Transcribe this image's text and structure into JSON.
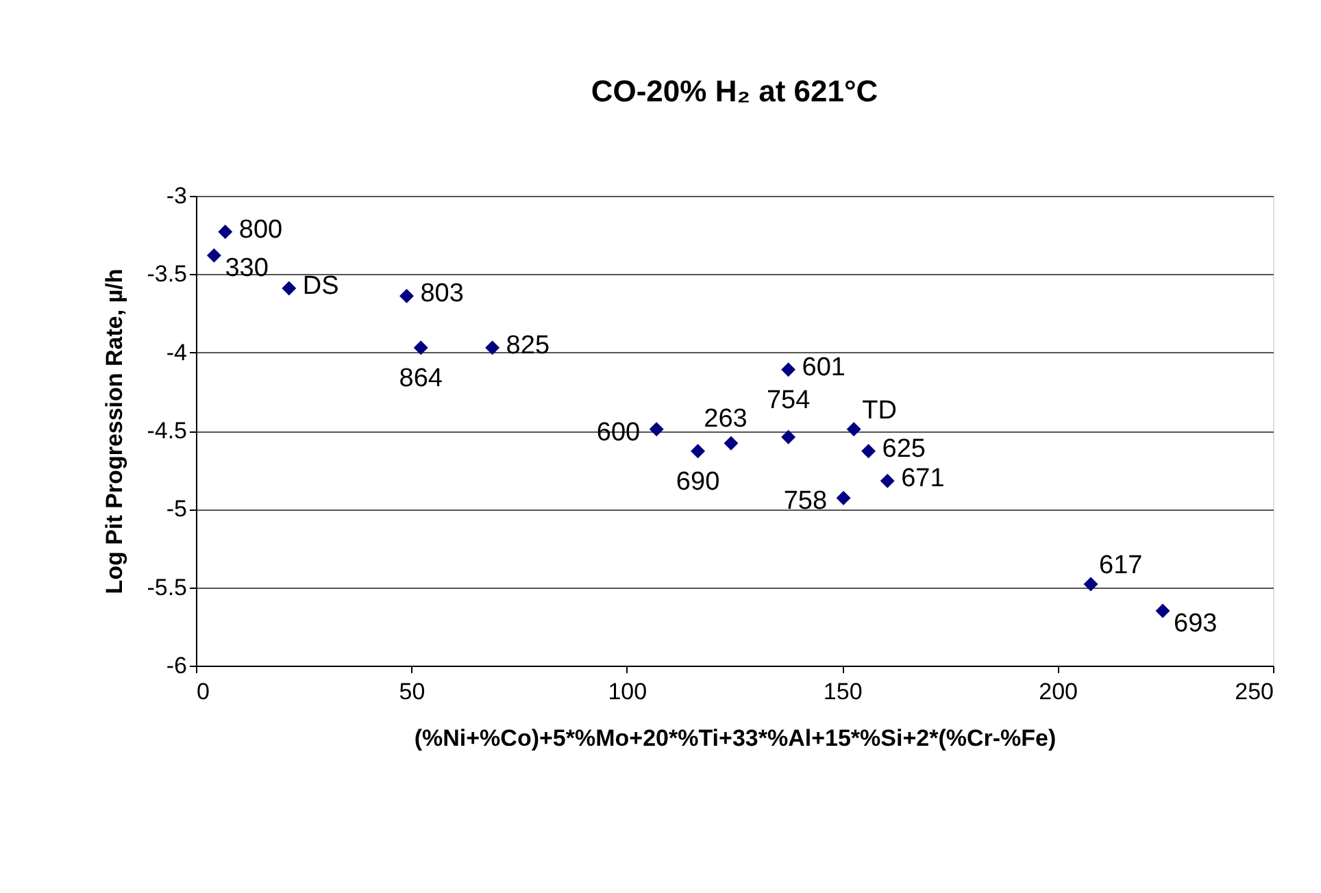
{
  "chart_data": {
    "type": "scatter",
    "title": "CO-20% H₂ at 621°C",
    "xlabel": "(%Ni+%Co)+5*%Mo+20*%Ti+33*%Al+15*%Si+2*(%Cr-%Fe)",
    "ylabel": "Log Pit Progression Rate, µ/h",
    "x": [
      6.8,
      4.2,
      21.6,
      48.9,
      52.2,
      68.8,
      106.9,
      116.5,
      124.2,
      137.5,
      137.5,
      152.7,
      156.1,
      160.5,
      150.3,
      207.7,
      224.4
    ],
    "series": [
      {
        "color": "#000080",
        "values": [
          -3.23,
          -3.38,
          -3.59,
          -3.64,
          -3.97,
          -3.97,
          -4.49,
          -4.63,
          -4.58,
          -4.54,
          -4.11,
          -4.49,
          -4.63,
          -4.82,
          -4.93,
          -5.48,
          -5.65
        ]
      }
    ],
    "annotations": [
      {
        "text": "800",
        "x": 6.8,
        "y": -3.23
      },
      {
        "text": "330",
        "x": 4.2,
        "y": -3.38
      },
      {
        "text": "DS",
        "x": 21.6,
        "y": -3.59
      },
      {
        "text": "803",
        "x": 48.9,
        "y": -3.64
      },
      {
        "text": "864",
        "x": 52.2,
        "y": -3.97
      },
      {
        "text": "825",
        "x": 68.8,
        "y": -3.97
      },
      {
        "text": "600",
        "x": 106.9,
        "y": -4.49
      },
      {
        "text": "690",
        "x": 116.5,
        "y": -4.63
      },
      {
        "text": "263",
        "x": 124.2,
        "y": -4.58
      },
      {
        "text": "754",
        "x": 137.5,
        "y": -4.54
      },
      {
        "text": "601",
        "x": 137.5,
        "y": -4.11
      },
      {
        "text": "TD",
        "x": 152.7,
        "y": -4.49
      },
      {
        "text": "625",
        "x": 156.1,
        "y": -4.63
      },
      {
        "text": "671",
        "x": 160.5,
        "y": -4.82
      },
      {
        "text": "758",
        "x": 150.3,
        "y": -4.93
      },
      {
        "text": "617",
        "x": 207.7,
        "y": -5.48
      },
      {
        "text": "693",
        "x": 224.4,
        "y": -5.65
      }
    ],
    "xlim": [
      0,
      250
    ],
    "xticks": [
      0,
      50,
      100,
      150,
      200,
      250
    ],
    "ylim": [
      -6,
      -3
    ],
    "yticks": [
      -6,
      -5.5,
      -5,
      -4.5,
      -4,
      -3.5,
      -3
    ],
    "grid": "y",
    "marker": "diamond"
  }
}
